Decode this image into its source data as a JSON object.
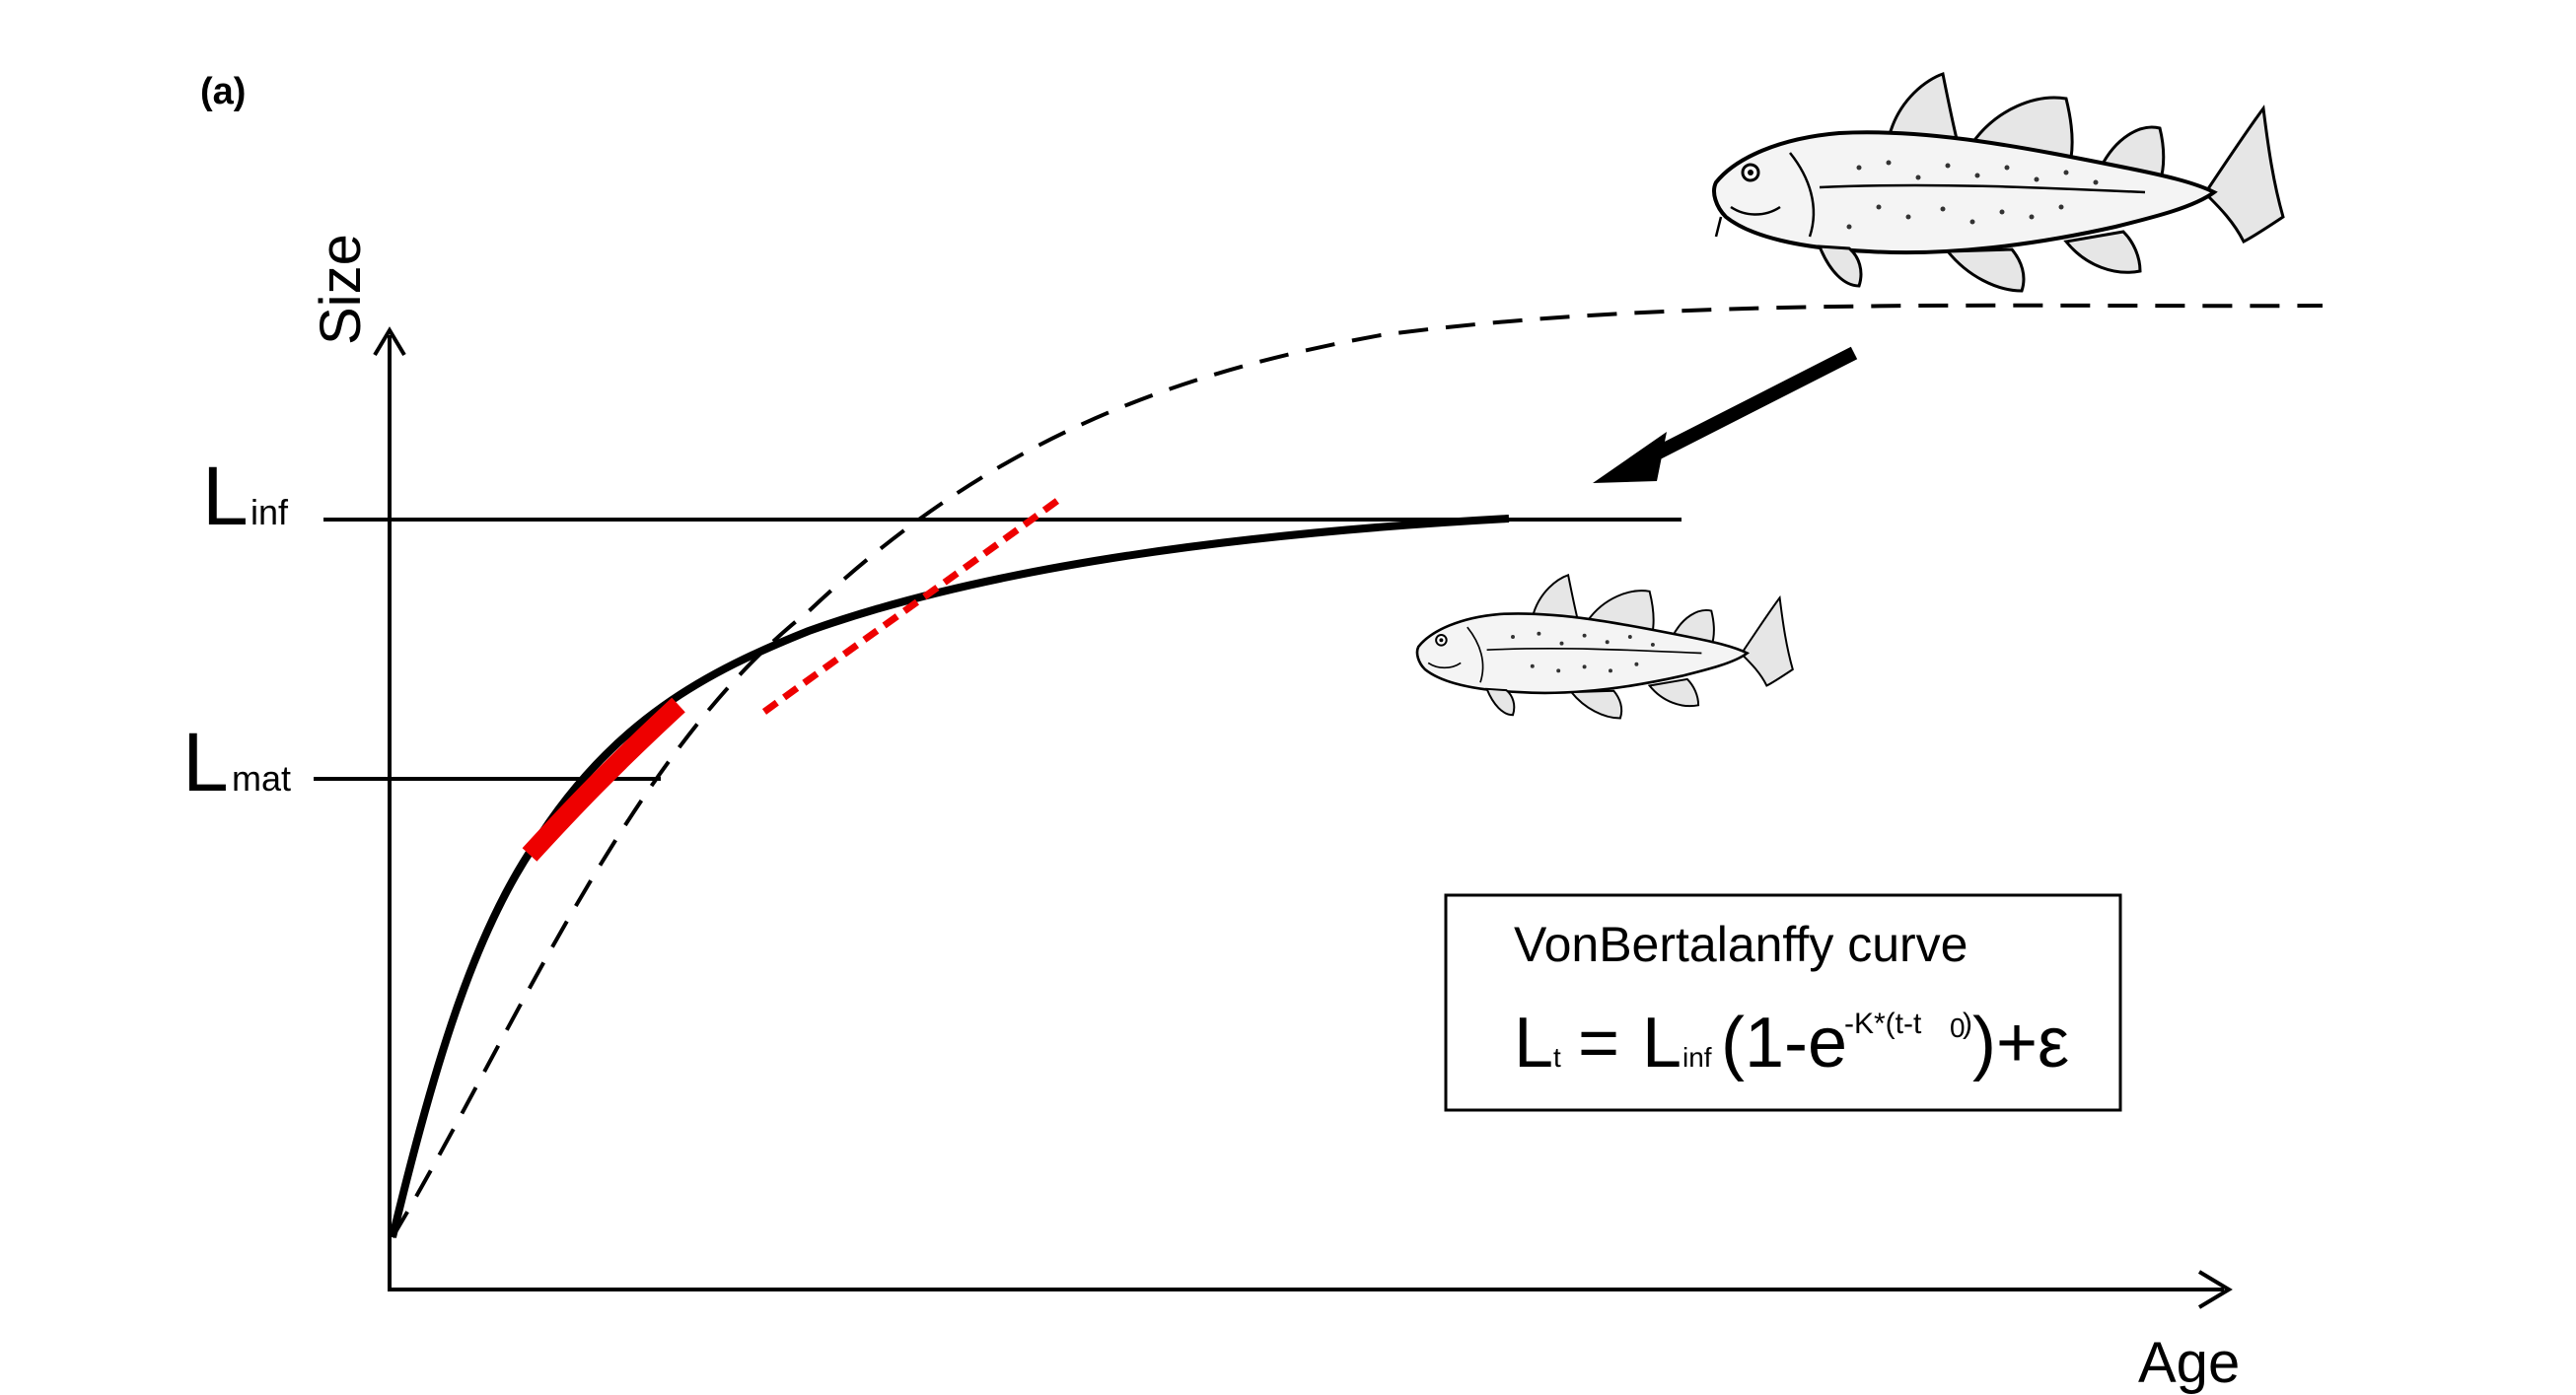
{
  "panel_label": "(a)",
  "axes": {
    "y_label": "Size",
    "x_label": "Age"
  },
  "reference_lines": {
    "l_inf": {
      "main": "L",
      "sub": "inf"
    },
    "l_mat": {
      "main": "L",
      "sub": "mat"
    }
  },
  "legend_box": {
    "title": "VonBertalanffy curve",
    "equation": {
      "lhs_main": "L",
      "lhs_sub": "t",
      "equals": "=",
      "rhs_main": "L",
      "rhs_sub": "inf",
      "open": "(1-e",
      "exponent": "-K*(t-t",
      "exponent_sub": "0",
      "exponent_close": ")",
      "close": ")+ε"
    }
  },
  "colors": {
    "curve": "#000000",
    "highlight": "#ee0000",
    "axis": "#000000"
  },
  "icons": [
    "large-fish-icon",
    "small-fish-icon",
    "arrow-icon"
  ]
}
